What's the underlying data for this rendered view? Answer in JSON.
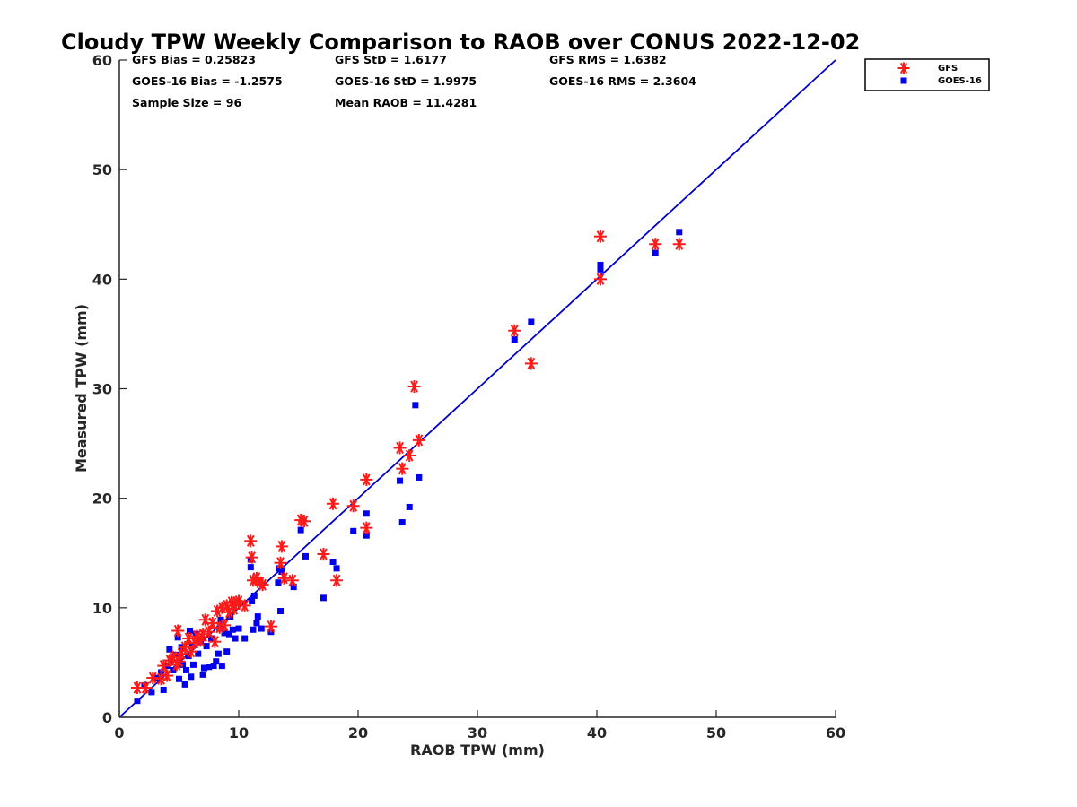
{
  "chart_data": {
    "type": "scatter",
    "title": "Cloudy TPW Weekly Comparison to RAOB over CONUS 2022-12-02",
    "xlabel": "RAOB TPW (mm)",
    "ylabel": "Measured TPW (mm)",
    "xlim": [
      0,
      60
    ],
    "ylim": [
      0,
      60
    ],
    "xticks": [
      "0",
      "10",
      "20",
      "30",
      "40",
      "50",
      "60"
    ],
    "yticks": [
      "0",
      "10",
      "20",
      "30",
      "40",
      "50",
      "60"
    ],
    "grid": false,
    "legend_position": "top-right outside",
    "stats": [
      [
        "GFS Bias = 0.25823",
        "GFS StD = 1.6177",
        "GFS RMS = 1.6382"
      ],
      [
        "GOES-16 Bias = -1.2575",
        "GOES-16 StD = 1.9975",
        "GOES-16 RMS = 2.3604"
      ],
      [
        "Sample Size = 96",
        "Mean RAOB = 11.4281",
        ""
      ]
    ],
    "reference_line": {
      "x": [
        0,
        60
      ],
      "y": [
        0,
        60
      ],
      "color": "#0000cc"
    },
    "series": [
      {
        "name": "GFS",
        "marker": "asterisk",
        "color": "#ff1a1a",
        "points": [
          [
            1.5,
            2.7
          ],
          [
            2.2,
            2.7
          ],
          [
            2.8,
            3.6
          ],
          [
            3.5,
            3.5
          ],
          [
            3.7,
            4.7
          ],
          [
            4.0,
            3.8
          ],
          [
            4.2,
            5.2
          ],
          [
            4.5,
            5.5
          ],
          [
            4.8,
            4.8
          ],
          [
            4.9,
            7.9
          ],
          [
            5.0,
            5.1
          ],
          [
            5.2,
            5.8
          ],
          [
            5.5,
            6.4
          ],
          [
            5.8,
            7.2
          ],
          [
            6.0,
            6.0
          ],
          [
            6.3,
            6.8
          ],
          [
            6.5,
            7.4
          ],
          [
            6.8,
            7.0
          ],
          [
            7.0,
            7.6
          ],
          [
            7.2,
            8.9
          ],
          [
            7.5,
            7.8
          ],
          [
            7.8,
            8.6
          ],
          [
            8.0,
            6.9
          ],
          [
            8.2,
            9.7
          ],
          [
            8.4,
            8.2
          ],
          [
            8.6,
            10.0
          ],
          [
            8.8,
            8.4
          ],
          [
            9.0,
            10.2
          ],
          [
            9.2,
            9.6
          ],
          [
            9.4,
            10.5
          ],
          [
            9.6,
            9.9
          ],
          [
            9.8,
            10.5
          ],
          [
            10.0,
            10.6
          ],
          [
            10.5,
            10.2
          ],
          [
            11.0,
            16.1
          ],
          [
            11.1,
            14.6
          ],
          [
            11.2,
            12.5
          ],
          [
            11.5,
            12.7
          ],
          [
            11.8,
            12.3
          ],
          [
            12.0,
            12.1
          ],
          [
            12.7,
            8.3
          ],
          [
            13.5,
            14.1
          ],
          [
            13.6,
            15.6
          ],
          [
            13.8,
            12.7
          ],
          [
            14.5,
            12.5
          ],
          [
            15.2,
            18.0
          ],
          [
            15.5,
            17.9
          ],
          [
            17.1,
            14.9
          ],
          [
            17.9,
            19.5
          ],
          [
            18.2,
            12.5
          ],
          [
            19.6,
            19.3
          ],
          [
            20.7,
            21.7
          ],
          [
            20.7,
            17.3
          ],
          [
            23.5,
            24.6
          ],
          [
            23.7,
            22.7
          ],
          [
            24.3,
            23.9
          ],
          [
            24.7,
            30.2
          ],
          [
            25.1,
            25.3
          ],
          [
            33.1,
            35.3
          ],
          [
            34.5,
            32.3
          ],
          [
            40.3,
            43.9
          ],
          [
            40.3,
            40.0
          ],
          [
            44.9,
            43.2
          ],
          [
            46.9,
            43.2
          ]
        ]
      },
      {
        "name": "GOES-16",
        "marker": "square",
        "color": "#0000ee",
        "points": [
          [
            1.5,
            1.5
          ],
          [
            2.1,
            2.9
          ],
          [
            2.7,
            2.3
          ],
          [
            3.2,
            3.6
          ],
          [
            3.5,
            4.1
          ],
          [
            3.7,
            2.5
          ],
          [
            4.0,
            4.7
          ],
          [
            4.2,
            6.2
          ],
          [
            4.3,
            5.0
          ],
          [
            4.5,
            4.3
          ],
          [
            4.7,
            5.7
          ],
          [
            4.9,
            7.3
          ],
          [
            5.0,
            3.5
          ],
          [
            5.2,
            6.4
          ],
          [
            5.3,
            4.8
          ],
          [
            5.5,
            3.0
          ],
          [
            5.6,
            4.3
          ],
          [
            5.8,
            5.6
          ],
          [
            5.9,
            7.9
          ],
          [
            6.0,
            3.7
          ],
          [
            6.1,
            6.6
          ],
          [
            6.2,
            4.8
          ],
          [
            6.4,
            7.6
          ],
          [
            6.6,
            5.8
          ],
          [
            6.8,
            6.9
          ],
          [
            7.0,
            3.9
          ],
          [
            7.1,
            4.5
          ],
          [
            7.3,
            6.5
          ],
          [
            7.5,
            4.6
          ],
          [
            7.7,
            7.2
          ],
          [
            7.9,
            4.7
          ],
          [
            8.1,
            5.1
          ],
          [
            8.3,
            5.8
          ],
          [
            8.4,
            8.1
          ],
          [
            8.5,
            8.9
          ],
          [
            8.6,
            4.7
          ],
          [
            8.8,
            7.7
          ],
          [
            9.0,
            6.0
          ],
          [
            9.2,
            7.6
          ],
          [
            9.3,
            9.2
          ],
          [
            9.5,
            8.0
          ],
          [
            9.7,
            7.2
          ],
          [
            10.0,
            8.1
          ],
          [
            10.5,
            7.2
          ],
          [
            11.0,
            14.4
          ],
          [
            11.0,
            13.7
          ],
          [
            11.1,
            10.6
          ],
          [
            11.2,
            8.0
          ],
          [
            11.3,
            11.1
          ],
          [
            11.5,
            8.6
          ],
          [
            11.6,
            9.2
          ],
          [
            11.9,
            8.1
          ],
          [
            12.7,
            7.8
          ],
          [
            13.3,
            12.3
          ],
          [
            13.4,
            13.6
          ],
          [
            13.5,
            9.7
          ],
          [
            13.6,
            13.3
          ],
          [
            14.6,
            11.9
          ],
          [
            15.2,
            17.1
          ],
          [
            15.6,
            14.7
          ],
          [
            17.1,
            10.9
          ],
          [
            17.9,
            14.2
          ],
          [
            18.2,
            13.6
          ],
          [
            19.6,
            17.0
          ],
          [
            20.7,
            18.6
          ],
          [
            20.7,
            16.6
          ],
          [
            23.5,
            21.6
          ],
          [
            23.7,
            17.8
          ],
          [
            24.3,
            19.2
          ],
          [
            24.8,
            28.5
          ],
          [
            25.1,
            21.9
          ],
          [
            33.1,
            34.5
          ],
          [
            34.5,
            36.1
          ],
          [
            40.3,
            41.3
          ],
          [
            40.3,
            40.9
          ],
          [
            44.9,
            42.4
          ],
          [
            46.9,
            44.3
          ]
        ]
      }
    ]
  }
}
